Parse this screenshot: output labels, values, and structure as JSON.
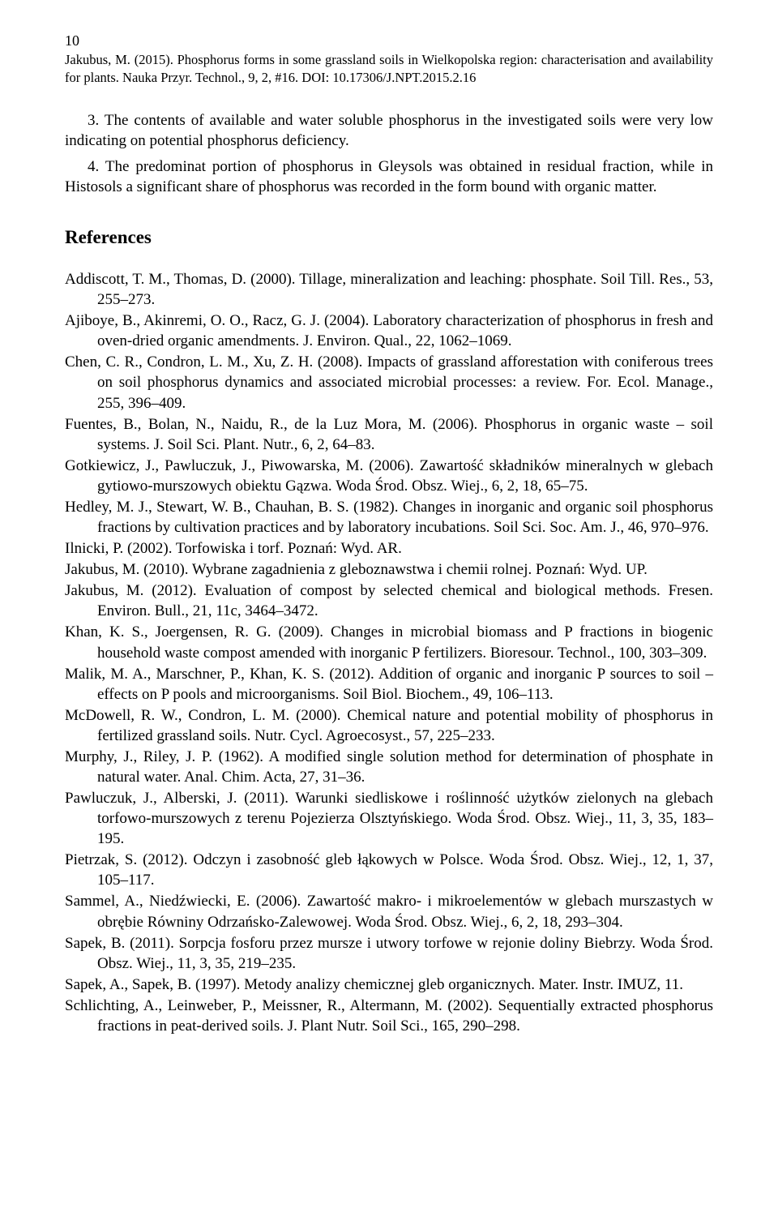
{
  "page_number": "10",
  "running_head": "Jakubus, M. (2015). Phosphorus forms in some grassland soils in Wielkopolska region: characterisation and availability for plants. Nauka Przyr. Technol., 9, 2, #16. DOI: 10.17306/J.NPT.2015.2.16",
  "body_paragraphs": [
    "3. The contents of available and water soluble phosphorus in the investigated soils were very low indicating on potential phosphorus deficiency.",
    "4. The predominat portion of phosphorus in Gleysols was obtained in residual fraction, while in Histosols a significant share of phosphorus was recorded in the form bound with organic matter."
  ],
  "references_heading": "References",
  "references": [
    "Addiscott, T. M., Thomas, D. (2000). Tillage, mineralization and leaching: phosphate. Soil Till. Res., 53, 255–273.",
    "Ajiboye, B., Akinremi, O. O., Racz, G. J. (2004). Laboratory characterization of phosphorus in fresh and oven-dried organic amendments. J. Environ. Qual., 22, 1062–1069.",
    "Chen, C. R., Condron, L. M., Xu, Z. H. (2008). Impacts of grassland afforestation with coniferous trees on soil phosphorus dynamics and associated microbial processes: a review. For. Ecol. Manage., 255, 396–409.",
    "Fuentes, B., Bolan, N., Naidu, R., de la Luz Mora, M. (2006). Phosphorus in organic waste – soil systems. J. Soil Sci. Plant. Nutr., 6, 2, 64–83.",
    "Gotkiewicz, J., Pawluczuk, J., Piwowarska, M. (2006). Zawartość składników mineralnych w glebach gytiowo-murszowych obiektu Gązwa. Woda Środ. Obsz. Wiej., 6, 2, 18, 65–75.",
    "Hedley, M. J., Stewart, W. B., Chauhan, B. S. (1982). Changes in inorganic and organic soil phosphorus fractions by cultivation practices and by laboratory incubations. Soil Sci. Soc. Am. J., 46, 970–976.",
    "Ilnicki, P. (2002). Torfowiska i torf. Poznań: Wyd. AR.",
    "Jakubus, M. (2010). Wybrane zagadnienia z gleboznawstwa i chemii rolnej. Poznań: Wyd. UP.",
    "Jakubus, M. (2012). Evaluation of compost by selected chemical and biological methods. Fresen. Environ. Bull., 21, 11c, 3464–3472.",
    "Khan, K. S., Joergensen, R. G. (2009). Changes in microbial biomass and P fractions in biogenic household waste compost amended with inorganic P fertilizers. Bioresour. Technol., 100, 303–309.",
    "Malik, M. A., Marschner, P., Khan, K. S. (2012). Addition of organic and inorganic P sources to soil – effects on P pools and microorganisms. Soil Biol. Biochem., 49, 106–113.",
    "McDowell, R. W., Condron, L. M. (2000). Chemical nature and potential mobility of phosphorus in fertilized grassland soils. Nutr. Cycl. Agroecosyst., 57, 225–233.",
    "Murphy, J., Riley, J. P. (1962). A modified single solution method for determination of phosphate in natural water. Anal. Chim. Acta, 27, 31–36.",
    "Pawluczuk, J., Alberski, J. (2011). Warunki siedliskowe i roślinność użytków zielonych na glebach torfowo-murszowych z terenu Pojezierza Olsztyńskiego. Woda Środ. Obsz. Wiej., 11, 3, 35, 183–195.",
    "Pietrzak, S. (2012). Odczyn i zasobność gleb łąkowych w Polsce. Woda Środ. Obsz. Wiej., 12, 1, 37, 105–117.",
    "Sammel, A., Niedźwiecki, E. (2006). Zawartość makro- i mikroelementów w glebach murszastych w obrębie Równiny Odrzańsko-Zalewowej. Woda Środ. Obsz. Wiej., 6, 2, 18, 293–304.",
    "Sapek, B. (2011). Sorpcja fosforu przez mursze i utwory torfowe w rejonie doliny Biebrzy. Woda Środ. Obsz. Wiej., 11, 3, 35, 219–235.",
    "Sapek, A., Sapek, B. (1997). Metody analizy chemicznej gleb organicznych. Mater. Instr. IMUZ, 11.",
    "Schlichting, A., Leinweber, P., Meissner, R., Altermann, M. (2002). Sequentially extracted phosphorus fractions in peat-derived soils. J. Plant Nutr. Soil Sci., 165, 290–298."
  ]
}
